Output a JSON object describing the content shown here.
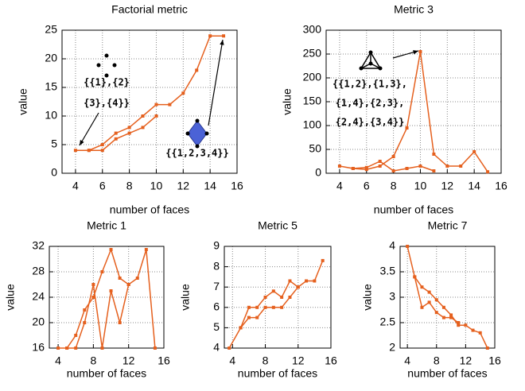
{
  "chart_data": [
    {
      "type": "line",
      "title": "Factorial metric",
      "x_label": "number of faces",
      "y_label": "value",
      "xlim": [
        3,
        16
      ],
      "ylim": [
        0,
        25
      ],
      "xticks": [
        4,
        6,
        8,
        10,
        12,
        14,
        16
      ],
      "yticks": [
        0,
        5,
        10,
        15,
        20,
        25
      ],
      "grid": true,
      "annotations": [
        "{{1},{2}",
        "{3},{4}}",
        "{{1,2,3,4}}"
      ],
      "series": [
        {
          "color": "#e5601e",
          "x": [
            4,
            5,
            6,
            7,
            8,
            9,
            10,
            11,
            12,
            13,
            14,
            15,
            null,
            5,
            6,
            7,
            8,
            9,
            10
          ],
          "values": [
            4,
            4,
            5,
            7,
            8,
            10,
            12,
            12,
            14,
            18,
            24,
            24,
            null,
            4,
            4,
            6,
            7,
            8,
            10
          ]
        }
      ]
    },
    {
      "type": "line",
      "title": "Metric 3",
      "x_label": "number of faces",
      "y_label": "value",
      "xlim": [
        3,
        16
      ],
      "ylim": [
        0,
        300
      ],
      "xticks": [
        4,
        6,
        8,
        10,
        12,
        14,
        16
      ],
      "yticks": [
        0,
        50,
        100,
        150,
        200,
        250,
        300
      ],
      "grid": true,
      "annotations": [
        "{{1,2},{1,3},",
        "{1,4},{2,3},",
        "{2,4},{3,4}}"
      ],
      "series": [
        {
          "color": "#e5601e",
          "x": [
            4,
            5,
            6,
            7,
            8,
            9,
            10,
            11,
            12,
            13,
            14,
            15,
            null,
            5,
            6,
            7,
            8,
            9,
            10,
            11
          ],
          "values": [
            15,
            10,
            8,
            15,
            35,
            95,
            255,
            40,
            15,
            15,
            45,
            3,
            null,
            10,
            12,
            25,
            5,
            10,
            15,
            5
          ]
        }
      ]
    },
    {
      "type": "line",
      "title": "Metric 1",
      "x_label": "number of faces",
      "y_label": "value",
      "xlim": [
        3,
        16
      ],
      "ylim": [
        16,
        32
      ],
      "xticks": [
        4,
        8,
        12,
        16
      ],
      "yticks": [
        16,
        20,
        24,
        28,
        32
      ],
      "grid": true,
      "series": [
        {
          "color": "#e5601e",
          "x": [
            4,
            5,
            6,
            7,
            8,
            9,
            10,
            11,
            12,
            13,
            14,
            15,
            null,
            5,
            6,
            7,
            8,
            9,
            10,
            11,
            12
          ],
          "values": [
            16,
            16,
            18,
            22,
            24,
            28,
            31.5,
            27,
            26,
            27,
            31.5,
            16,
            null,
            16,
            16,
            20,
            26,
            16,
            25,
            20,
            26
          ]
        }
      ]
    },
    {
      "type": "line",
      "title": "Metric 5",
      "x_label": "number of faces",
      "y_label": "value",
      "xlim": [
        3,
        16
      ],
      "ylim": [
        4,
        9
      ],
      "xticks": [
        4,
        8,
        12,
        16
      ],
      "yticks": [
        4,
        5,
        6,
        7,
        8,
        9
      ],
      "grid": true,
      "series": [
        {
          "color": "#e5601e",
          "x": [
            3.6,
            5,
            6,
            7,
            8,
            9,
            10,
            11,
            12,
            13,
            14,
            15,
            null,
            5,
            6,
            7,
            8,
            9,
            10,
            11,
            12
          ],
          "values": [
            4,
            5,
            6,
            6,
            6.5,
            6.8,
            6.5,
            7.3,
            7,
            7.3,
            7.3,
            8.3,
            null,
            5,
            5.5,
            5.5,
            6,
            6,
            6,
            6.5,
            7
          ]
        }
      ]
    },
    {
      "type": "line",
      "title": "Metric 7",
      "x_label": "number of faces",
      "y_label": "value",
      "xlim": [
        3,
        16
      ],
      "ylim": [
        2,
        4
      ],
      "xticks": [
        4,
        8,
        12,
        16
      ],
      "yticks": [
        2,
        2.5,
        3,
        3.5,
        4
      ],
      "grid": true,
      "series": [
        {
          "color": "#e5601e",
          "x": [
            4,
            5,
            6,
            7,
            8,
            9,
            10,
            11,
            12,
            13,
            14,
            15,
            null,
            5,
            6,
            7,
            8,
            9,
            10,
            11
          ],
          "values": [
            4,
            3.4,
            3.2,
            3.1,
            2.95,
            2.8,
            2.65,
            2.45,
            2.45,
            2.35,
            2.3,
            2,
            null,
            3.4,
            2.8,
            2.9,
            2.7,
            2.6,
            2.6,
            2.5
          ]
        }
      ]
    }
  ]
}
